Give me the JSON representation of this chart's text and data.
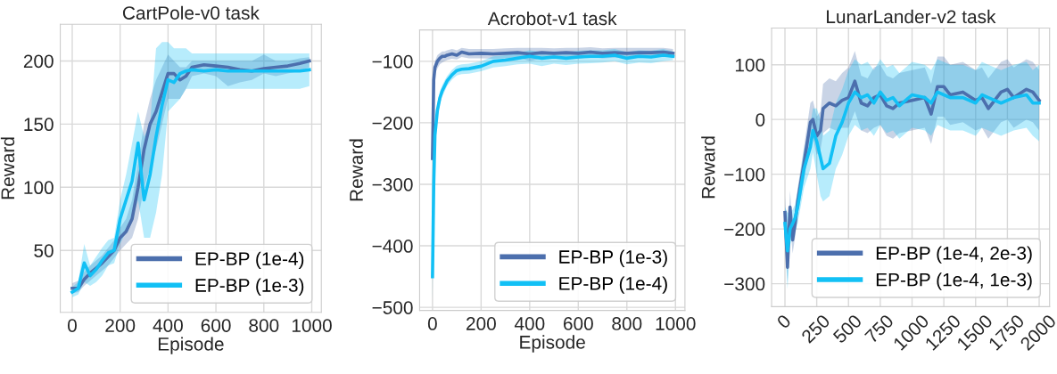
{
  "chart_data": [
    {
      "type": "line",
      "title": "CartPole-v0 task",
      "xlabel": "Episode",
      "ylabel": "Reward",
      "xlim": [
        -50,
        1040
      ],
      "ylim": [
        1,
        229
      ],
      "xticks": [
        0,
        200,
        400,
        600,
        800,
        1000
      ],
      "yticks": [
        50,
        100,
        150,
        200
      ],
      "grid": true,
      "legend": "bottom right",
      "x": [
        0,
        25,
        50,
        75,
        100,
        125,
        150,
        175,
        200,
        225,
        250,
        275,
        300,
        325,
        350,
        375,
        400,
        425,
        450,
        475,
        500,
        550,
        600,
        650,
        700,
        750,
        800,
        850,
        900,
        950,
        990
      ],
      "series": [
        {
          "name": "EP-BP (1e-4)",
          "color": "#4c6fad",
          "values": [
            20,
            20,
            27,
            32,
            36,
            40,
            45,
            50,
            60,
            65,
            75,
            100,
            130,
            150,
            160,
            175,
            190,
            190,
            185,
            188,
            195,
            197,
            196,
            195,
            193,
            192,
            194,
            195,
            196,
            198,
            200
          ],
          "lower": [
            16,
            17,
            22,
            26,
            30,
            34,
            38,
            44,
            50,
            55,
            60,
            75,
            100,
            115,
            130,
            150,
            170,
            170,
            170,
            178,
            188,
            190,
            188,
            180,
            183,
            185,
            190,
            188,
            190,
            192,
            195
          ],
          "upper": [
            24,
            26,
            33,
            38,
            42,
            46,
            52,
            58,
            68,
            75,
            90,
            120,
            150,
            170,
            185,
            195,
            205,
            200,
            195,
            195,
            200,
            200,
            200,
            200,
            200,
            200,
            205,
            200,
            200,
            202,
            203
          ]
        },
        {
          "name": "EP-BP (1e-3)",
          "color": "#12c0f5",
          "values": [
            17,
            20,
            40,
            30,
            35,
            42,
            48,
            50,
            75,
            90,
            105,
            135,
            90,
            110,
            140,
            165,
            185,
            183,
            190,
            192,
            193,
            192,
            193,
            192,
            192,
            192,
            192,
            192,
            192,
            192,
            193
          ],
          "lower": [
            13,
            15,
            25,
            22,
            25,
            30,
            38,
            40,
            55,
            65,
            75,
            90,
            60,
            60,
            80,
            110,
            160,
            165,
            170,
            178,
            178,
            178,
            178,
            178,
            178,
            178,
            178,
            178,
            178,
            178,
            180
          ],
          "upper": [
            21,
            25,
            55,
            38,
            45,
            52,
            58,
            60,
            90,
            110,
            135,
            160,
            140,
            150,
            210,
            215,
            215,
            210,
            210,
            210,
            206,
            206,
            206,
            206,
            206,
            206,
            206,
            206,
            206,
            206,
            206
          ]
        }
      ]
    },
    {
      "type": "line",
      "title": "Acrobot-v1 task",
      "xlabel": "Episode",
      "ylabel": "Reward",
      "xlim": [
        -53,
        1039
      ],
      "ylim": [
        -505,
        -49
      ],
      "xticks": [
        0,
        200,
        400,
        600,
        800,
        1000
      ],
      "yticks": [
        {
          "value": -500,
          "label": "−500"
        },
        {
          "value": -400,
          "label": "−400"
        },
        {
          "value": -300,
          "label": "−300"
        },
        {
          "value": -200,
          "label": "−200"
        },
        {
          "value": -100,
          "label": "−100"
        }
      ],
      "grid": true,
      "legend": "bottom right",
      "x": [
        0,
        5,
        10,
        20,
        30,
        40,
        50,
        60,
        80,
        100,
        120,
        150,
        200,
        250,
        300,
        350,
        400,
        450,
        500,
        550,
        600,
        650,
        700,
        750,
        800,
        850,
        900,
        950,
        990
      ],
      "series": [
        {
          "name": "EP-BP (1e-3)",
          "color": "#4c6fad",
          "values": [
            -258,
            -130,
            -110,
            -100,
            -95,
            -92,
            -92,
            -90,
            -88,
            -90,
            -85,
            -88,
            -87,
            -88,
            -87,
            -86,
            -88,
            -86,
            -87,
            -86,
            -87,
            -85,
            -87,
            -86,
            -87,
            -86,
            -86,
            -85,
            -87
          ],
          "lower": [
            -270,
            -145,
            -120,
            -112,
            -105,
            -102,
            -100,
            -98,
            -96,
            -97,
            -93,
            -95,
            -95,
            -96,
            -95,
            -93,
            -100,
            -95,
            -96,
            -95,
            -96,
            -93,
            -95,
            -94,
            -95,
            -93,
            -93,
            -92,
            -94
          ],
          "upper": [
            -245,
            -115,
            -100,
            -90,
            -87,
            -84,
            -84,
            -82,
            -80,
            -82,
            -78,
            -80,
            -80,
            -80,
            -79,
            -78,
            -78,
            -78,
            -79,
            -78,
            -78,
            -77,
            -79,
            -78,
            -78,
            -78,
            -78,
            -78,
            -80
          ]
        },
        {
          "name": "EP-BP (1e-4)",
          "color": "#12c0f5",
          "values": [
            -450,
            -300,
            -220,
            -180,
            -160,
            -148,
            -140,
            -132,
            -122,
            -115,
            -113,
            -112,
            -108,
            -100,
            -98,
            -95,
            -92,
            -95,
            -93,
            -95,
            -93,
            -92,
            -92,
            -90,
            -95,
            -92,
            -93,
            -90,
            -92
          ],
          "lower": [
            -490,
            -320,
            -235,
            -192,
            -170,
            -157,
            -149,
            -140,
            -130,
            -123,
            -121,
            -120,
            -116,
            -110,
            -108,
            -105,
            -104,
            -108,
            -104,
            -106,
            -104,
            -103,
            -102,
            -100,
            -105,
            -102,
            -103,
            -100,
            -98
          ],
          "upper": [
            -410,
            -280,
            -205,
            -168,
            -150,
            -139,
            -131,
            -124,
            -114,
            -107,
            -105,
            -104,
            -100,
            -92,
            -90,
            -86,
            -82,
            -85,
            -84,
            -85,
            -83,
            -82,
            -82,
            -80,
            -85,
            -82,
            -83,
            -80,
            -84
          ]
        }
      ]
    },
    {
      "type": "line",
      "title": "LunarLander-v2 task",
      "ylabel": "Reward",
      "xlim": [
        -105,
        2082
      ],
      "ylim": [
        -342,
        167
      ],
      "xticks": [
        0,
        250,
        500,
        750,
        1000,
        1250,
        1500,
        1750,
        2000
      ],
      "yticks": [
        {
          "value": -300,
          "label": "−300"
        },
        {
          "value": -200,
          "label": "−200"
        },
        {
          "value": -100,
          "label": "−100"
        },
        0,
        100
      ],
      "grid": true,
      "legend": "bottom right",
      "x": [
        0,
        20,
        40,
        60,
        80,
        100,
        150,
        200,
        220,
        250,
        280,
        300,
        350,
        400,
        450,
        500,
        550,
        600,
        650,
        700,
        750,
        800,
        850,
        900,
        1000,
        1100,
        1150,
        1200,
        1250,
        1300,
        1400,
        1500,
        1550,
        1600,
        1700,
        1750,
        1800,
        1900,
        1950,
        2000
      ],
      "series": [
        {
          "name": "EP-BP (1e-4, 2e-3)",
          "color": "#4c6fad",
          "values": [
            -170,
            -270,
            -160,
            -220,
            -190,
            -150,
            -80,
            -5,
            0,
            -30,
            -20,
            20,
            30,
            25,
            35,
            40,
            70,
            30,
            25,
            40,
            45,
            25,
            20,
            30,
            35,
            40,
            10,
            60,
            60,
            45,
            50,
            35,
            40,
            20,
            50,
            55,
            40,
            55,
            50,
            35
          ],
          "lower": [
            -200,
            -300,
            -190,
            -245,
            -215,
            -175,
            -110,
            -40,
            -35,
            -65,
            -55,
            -25,
            -15,
            -20,
            -15,
            -15,
            15,
            -20,
            -25,
            -15,
            -10,
            -30,
            -35,
            -25,
            -20,
            -15,
            -45,
            5,
            5,
            -10,
            -5,
            -20,
            -15,
            -35,
            -5,
            0,
            -15,
            0,
            -5,
            -20
          ],
          "upper": [
            -140,
            -240,
            -130,
            -195,
            -165,
            -125,
            -50,
            30,
            35,
            5,
            15,
            65,
            75,
            70,
            85,
            95,
            125,
            80,
            75,
            95,
            100,
            80,
            75,
            85,
            90,
            95,
            65,
            115,
            115,
            100,
            105,
            90,
            95,
            75,
            105,
            110,
            95,
            110,
            105,
            90
          ]
        },
        {
          "name": "EP-BP (1e-4, 1e-3)",
          "color": "#12c0f5",
          "values": [
            -190,
            -240,
            -200,
            -190,
            -180,
            -160,
            -90,
            -50,
            -20,
            -40,
            -70,
            -90,
            -80,
            -30,
            -5,
            30,
            50,
            40,
            45,
            30,
            50,
            35,
            40,
            25,
            45,
            40,
            30,
            50,
            45,
            40,
            40,
            30,
            45,
            40,
            30,
            35,
            40,
            45,
            30,
            30
          ],
          "lower": [
            -220,
            -310,
            -230,
            -215,
            -205,
            -190,
            -125,
            -90,
            -60,
            -100,
            -140,
            -150,
            -140,
            -90,
            -65,
            -30,
            -10,
            -20,
            -15,
            -30,
            -10,
            -25,
            -20,
            -35,
            -15,
            -20,
            -30,
            -10,
            -15,
            -20,
            -20,
            -30,
            -15,
            -20,
            -30,
            -25,
            -20,
            -15,
            -30,
            -40
          ],
          "upper": [
            -160,
            -170,
            -170,
            -165,
            -155,
            -130,
            -55,
            -10,
            20,
            20,
            0,
            -30,
            -20,
            30,
            55,
            90,
            110,
            100,
            105,
            90,
            110,
            95,
            100,
            85,
            105,
            100,
            90,
            110,
            105,
            100,
            100,
            90,
            105,
            100,
            90,
            95,
            100,
            105,
            90,
            100
          ]
        }
      ]
    }
  ]
}
